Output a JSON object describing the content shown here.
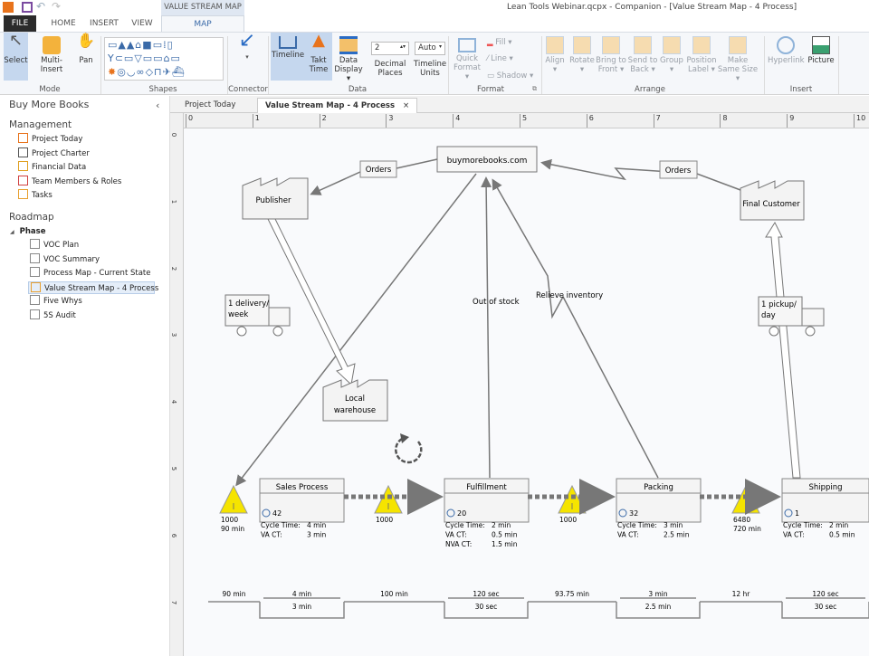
{
  "window": {
    "title": "Lean Tools Webinar.qcpx - Companion - [Value Stream Map - 4 Process]",
    "context_tab": "VALUE STREAM MAP"
  },
  "tabs": [
    {
      "label": "FILE"
    },
    {
      "label": "HOME"
    },
    {
      "label": "INSERT"
    },
    {
      "label": "VIEW"
    },
    {
      "label": "MAP",
      "active": true
    }
  ],
  "ribbon": {
    "mode": {
      "label": "Mode",
      "buttons": [
        "Select",
        "Multi-Insert",
        "Pan"
      ]
    },
    "shapes": {
      "label": "Shapes"
    },
    "connector": {
      "label": "Connector"
    },
    "data": {
      "label": "Data",
      "timeline": "Timeline",
      "takt_time": [
        "Takt",
        "Time"
      ],
      "data_display": [
        "Data",
        "Display ▾"
      ],
      "decimal_places": {
        "value": "2",
        "label": [
          "Decimal",
          "Places"
        ]
      },
      "timeline_units": {
        "value": "Auto",
        "label": [
          "Timeline",
          "Units"
        ]
      }
    },
    "format": {
      "label": "Format",
      "quick_format": [
        "Quick",
        "Format ▾"
      ],
      "fill": "Fill ▾",
      "line": "Line ▾",
      "shadow": "Shadow ▾"
    },
    "arrange": {
      "label": "Arrange",
      "buttons": [
        [
          "Align",
          "▾"
        ],
        [
          "Rotate",
          "▾"
        ],
        [
          "Bring to",
          "Front ▾"
        ],
        [
          "Send to",
          "Back ▾"
        ],
        [
          "Group",
          "▾"
        ],
        [
          "Position",
          "Label ▾"
        ],
        [
          "Make",
          "Same Size ▾"
        ]
      ]
    },
    "insert": {
      "label": "Insert",
      "hyperlink": "Hyperlink",
      "picture": "Picture"
    }
  },
  "sidebar": {
    "title": "Buy More Books",
    "management_label": "Management",
    "management": [
      "Project Today",
      "Project Charter",
      "Financial Data",
      "Team Members & Roles",
      "Tasks"
    ],
    "roadmap_label": "Roadmap",
    "phase": "Phase",
    "phase_items": [
      "VOC Plan",
      "VOC Summary",
      "Process Map - Current State",
      "Value Stream Map - 4 Process",
      "Five Whys",
      "5S Audit"
    ],
    "selected": "Value Stream Map - 4 Process"
  },
  "doc_tabs": [
    {
      "label": "Project Today"
    },
    {
      "label": "Value Stream Map - 4 Process",
      "active": true,
      "close": "×"
    }
  ],
  "ruler": {
    "h": [
      "0",
      "1",
      "2",
      "3",
      "4",
      "5",
      "6",
      "7",
      "8",
      "9",
      "10"
    ],
    "v": [
      "0",
      "1",
      "2",
      "3",
      "4",
      "5",
      "6",
      "7"
    ]
  },
  "map": {
    "company": "buymorebooks.com",
    "orders_left": "Orders",
    "orders_right": "Orders",
    "supplier": "Publisher",
    "customer": "Final Customer",
    "truck_in": [
      "1 delivery/",
      "week"
    ],
    "truck_out": [
      "1 pickup/",
      "day"
    ],
    "warehouse": [
      "Local",
      "warehouse"
    ],
    "out_of_stock": "Out of stock",
    "relieve_inventory": "Relieve inventory",
    "processes": [
      {
        "name": "Sales Process",
        "operators": "42",
        "metrics": [
          [
            "Cycle Time:",
            "4 min"
          ],
          [
            "VA CT:",
            "3 min"
          ]
        ]
      },
      {
        "name": "Fulfillment",
        "operators": "20",
        "metrics": [
          [
            "Cycle Time:",
            "2 min"
          ],
          [
            "VA CT:",
            "0.5 min"
          ],
          [
            "NVA CT:",
            "1.5 min"
          ]
        ]
      },
      {
        "name": "Packing",
        "operators": "32",
        "metrics": [
          [
            "Cycle Time:",
            "3 min"
          ],
          [
            "VA CT:",
            "2.5 min"
          ]
        ]
      },
      {
        "name": "Shipping",
        "operators": "1",
        "metrics": [
          [
            "Cycle Time:",
            "2 min"
          ],
          [
            "VA CT:",
            "0.5 min"
          ]
        ]
      }
    ],
    "inventory": [
      {
        "qty": "1000",
        "time": "90 min"
      },
      {
        "qty": "1000",
        "time": ""
      },
      {
        "qty": "1000",
        "time": ""
      },
      {
        "qty": "6480",
        "time": "720 min"
      }
    ],
    "timeline_top": [
      "90 min",
      "4 min",
      "100 min",
      "120 sec",
      "93.75 min",
      "3 min",
      "12 hr",
      "120 sec"
    ],
    "timeline_bottom": [
      "3 min",
      "30 sec",
      "2.5 min",
      "30 sec"
    ],
    "colors": {
      "inventory": "#f5e400",
      "arrow": "#777777",
      "accent": "#3a6aa8"
    }
  }
}
